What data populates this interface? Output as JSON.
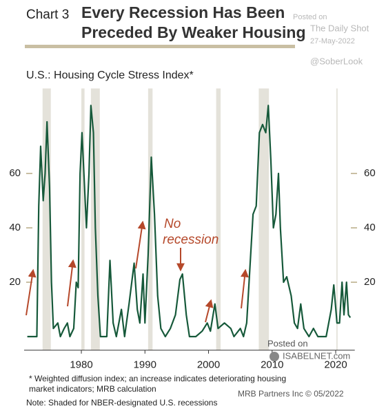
{
  "chart_data": {
    "type": "line",
    "chart_label": "Chart 3",
    "title": [
      "Every Recession Has Been",
      "Preceded By Weaker Housing"
    ],
    "subtitle": "U.S.: Housing Cycle Stress Index*",
    "watermark_top": [
      "Posted on",
      "The Daily Shot",
      "27-May-2022",
      "@SoberLook"
    ],
    "watermark_bottom": [
      "Posted on",
      "ISABELNET.com"
    ],
    "annotation": [
      "No",
      "recession"
    ],
    "notes": [
      "* Weighted diffusion index; an increase indicates deteriorating housing",
      "market indicators; MRB calculation",
      "Note: Shaded for NBER-designated U.S. recessions"
    ],
    "source": "MRB Partners Inc © 05/2022",
    "xlim": [
      1971,
      2023
    ],
    "xticks": [
      1980,
      1990,
      2000,
      2010,
      2020
    ],
    "ylim": [
      -5,
      90
    ],
    "yticks": [
      20,
      40,
      60
    ],
    "recessions": [
      [
        1973.9,
        1975.2
      ],
      [
        1980.0,
        1980.5
      ],
      [
        1981.5,
        1982.9
      ],
      [
        1990.5,
        1991.2
      ],
      [
        2001.2,
        2001.9
      ],
      [
        2007.9,
        2009.5
      ],
      [
        2020.1,
        2020.3
      ]
    ],
    "recession_color": "#e4e2da",
    "series": [
      {
        "color": "#16593a",
        "x": [
          1971.5,
          1973,
          1973.3,
          1973.6,
          1974.0,
          1974.3,
          1974.6,
          1975.0,
          1975.3,
          1975.6,
          1976.3,
          1976.7,
          1977.3,
          1977.8,
          1978.2,
          1978.8,
          1979.2,
          1979.5,
          1979.8,
          1980.1,
          1980.4,
          1980.8,
          1981.2,
          1981.5,
          1981.9,
          1982.2,
          1982.6,
          1983.0,
          1984.0,
          1984.5,
          1985.0,
          1985.5,
          1986.3,
          1986.8,
          1987.5,
          1988.3,
          1988.8,
          1989.2,
          1989.7,
          1990.0,
          1990.5,
          1991.0,
          1991.5,
          1992.0,
          1992.5,
          1993.2,
          1994.0,
          1994.8,
          1995.5,
          1995.9,
          1996.5,
          1997.0,
          1998.0,
          1999.0,
          1999.8,
          2000.3,
          2001.0,
          2001.5,
          2002.5,
          2003.5,
          2004.0,
          2005.0,
          2005.5,
          2006.0,
          2006.5,
          2007.0,
          2007.5,
          2008.0,
          2008.5,
          2009.0,
          2009.4,
          2009.8,
          2010.2,
          2010.6,
          2011.0,
          2011.3,
          2011.8,
          2012.3,
          2013.0,
          2013.5,
          2014.0,
          2014.5,
          2015.0,
          2015.8,
          2016.5,
          2017.2,
          2018.5,
          2019.3,
          2019.7,
          2020.2,
          2020.6,
          2021.0,
          2021.3,
          2021.7,
          2022.0,
          2022.3
        ],
        "values": [
          0,
          0,
          48,
          70,
          50,
          60,
          79,
          55,
          20,
          3,
          5,
          0,
          3,
          5,
          0,
          3,
          20,
          18,
          60,
          75,
          60,
          40,
          60,
          85,
          75,
          40,
          15,
          0,
          0,
          28,
          5,
          0,
          10,
          0,
          12,
          27,
          10,
          5,
          23,
          5,
          30,
          66,
          45,
          15,
          3,
          0,
          3,
          8,
          21,
          23,
          8,
          0,
          0,
          2,
          5,
          2,
          12,
          3,
          5,
          3,
          0,
          3,
          0,
          5,
          25,
          45,
          48,
          75,
          78,
          75,
          85,
          65,
          40,
          45,
          60,
          40,
          20,
          22,
          15,
          5,
          3,
          12,
          3,
          0,
          3,
          0,
          0,
          10,
          19,
          5,
          5,
          20,
          8,
          20,
          8,
          7
        ]
      }
    ]
  }
}
